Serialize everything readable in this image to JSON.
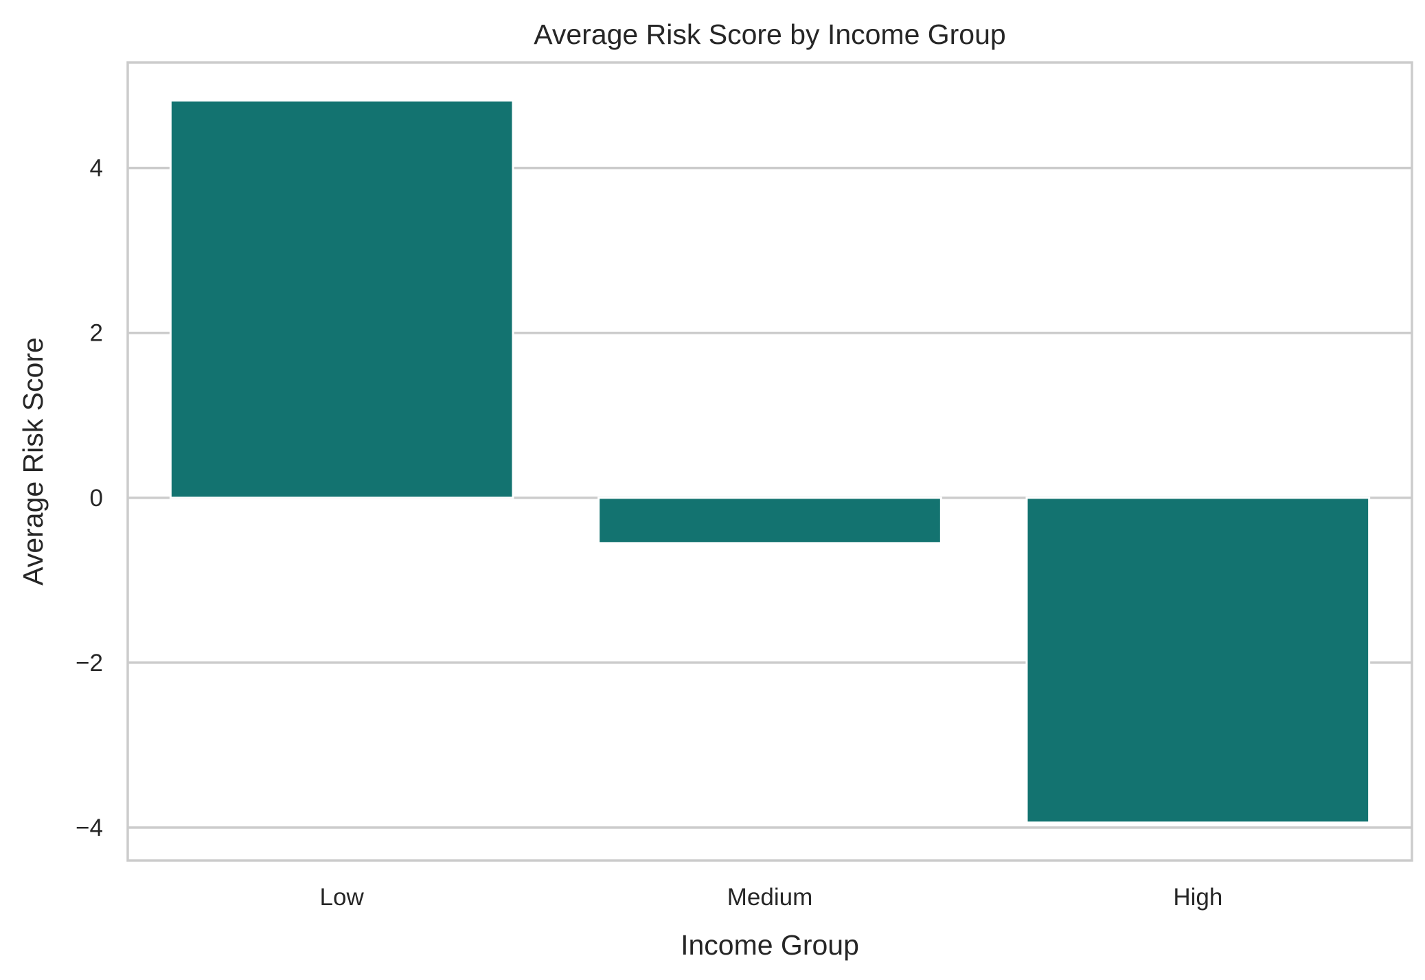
{
  "chart_data": {
    "type": "bar",
    "title": "Average Risk Score by Income Group",
    "xlabel": "Income Group",
    "ylabel": "Average Risk Score",
    "categories": [
      "Low",
      "Medium",
      "High"
    ],
    "values": [
      4.82,
      -0.55,
      -3.94
    ],
    "ylim": [
      -4.4,
      5.28
    ],
    "yticks": [
      4,
      2,
      0,
      -2,
      -4
    ],
    "ytick_labels": [
      "4",
      "2",
      "0",
      "−2",
      "−4"
    ],
    "grid": true,
    "bar_color": "#137370",
    "grid_color": "#cccccc",
    "frame_color": "#cccccc"
  }
}
